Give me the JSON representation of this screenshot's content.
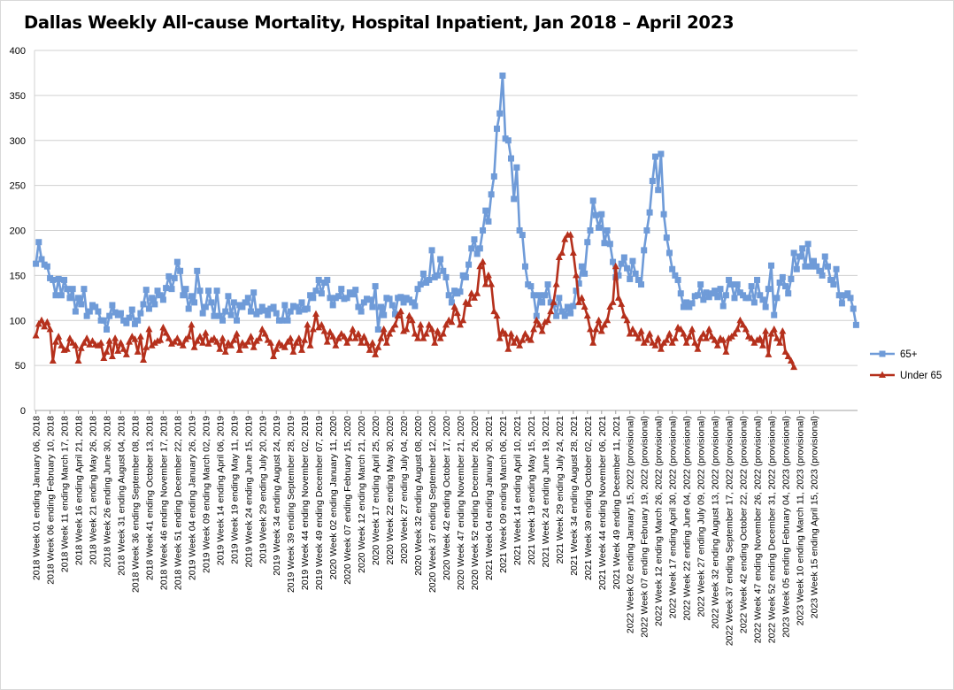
{
  "chart_data": {
    "type": "line",
    "title": "Dallas Weekly All-cause Mortality, Hospital Inpatient, Jan 2018 – April 2023",
    "xlabel": "",
    "ylabel": "",
    "ylim": [
      0,
      400
    ],
    "yticks": [
      0,
      50,
      100,
      150,
      200,
      250,
      300,
      350,
      400
    ],
    "grid": true,
    "legend_position": "right",
    "x_tick_labels": [
      "2018 Week 01 ending January 06, 2018",
      "2018 Week 06 ending February 10, 2018",
      "2018 Week 11 ending March 17, 2018",
      "2018 Week 16 ending April 21, 2018",
      "2018 Week 21 ending May 26, 2018",
      "2018 Week 26 ending June 30, 2018",
      "2018 Week 31 ending August 04, 2018",
      "2018 Week 36 ending September 08, 2018",
      "2018 Week 41 ending October 13, 2018",
      "2018 Week 46 ending November 17, 2018",
      "2018 Week 51 ending December 22, 2018",
      "2019 Week 04 ending January 26, 2019",
      "2019 Week 09 ending March 02, 2019",
      "2019 Week 14 ending April 06, 2019",
      "2019 Week 19 ending May 11, 2019",
      "2019 Week 24 ending June 15, 2019",
      "2019 Week 29 ending July 20, 2019",
      "2019 Week 34 ending August 24, 2019",
      "2019 Week 39 ending September 28, 2019",
      "2019 Week 44 ending November 02, 2019",
      "2019 Week 49 ending December 07, 2019",
      "2020 Week 02 ending January 11, 2020",
      "2020 Week 07 ending February 15, 2020",
      "2020 Week 12 ending March 21, 2020",
      "2020 Week 17 ending April 25, 2020",
      "2020 Week 22 ending May 30, 2020",
      "2020 Week 27 ending July 04, 2020",
      "2020 Week 32 ending August 08, 2020",
      "2020 Week 37 ending September 12, 2020",
      "2020 Week 42 ending October 17, 2020",
      "2020 Week 47 ending November 21, 2020",
      "2020 Week 52 ending December 26, 2020",
      "2021 Week 04 ending January 30, 2021",
      "2021 Week 09 ending March 06, 2021",
      "2021 Week 14 ending April 10, 2021",
      "2021 Week 19 ending May 15, 2021",
      "2021 Week 24 ending June 19, 2021",
      "2021 Week 29 ending July 24, 2021",
      "2021 Week 34 ending August 28, 2021",
      "2021 Week 39 ending October 02, 2021",
      "2021 Week 44 ending November 06, 2021",
      "2021 Week 49 ending December 11, 2021",
      "2022 Week 02 ending January 15, 2022 (provisional)",
      "2022 Week 07 ending February 19, 2022 (provisional)",
      "2022 Week 12 ending March 26, 2022 (provisional)",
      "2022 Week 17 ending April 30, 2022 (provisional)",
      "2022 Week 22 ending June 04, 2022 (provisional)",
      "2022 Week 27 ending July 09, 2022 (provisional)",
      "2022 Week 32 ending August 13, 2022 (provisional)",
      "2022 Week 37 ending September 17, 2022 (provisional)",
      "2022 Week 42 ending October 22, 2022 (provisional)",
      "2022 Week 47 ending November 26, 2022 (provisional)",
      "2022 Week 52 ending December 31, 2022 (provisional)",
      "2023 Week 05 ending February 04, 2023 (provisional)",
      "2023 Week 10 ending March 11, 2023 (provisional)",
      "2023 Week 15 ending April 15, 2023 (provisional)"
    ],
    "series": [
      {
        "name": "65+",
        "color": "#6f9bd8",
        "marker": "square",
        "values": [
          163,
          187,
          168,
          162,
          160,
          147,
          145,
          128,
          146,
          128,
          145,
          135,
          125,
          135,
          110,
          125,
          118,
          135,
          105,
          110,
          117,
          115,
          110,
          100,
          100,
          90,
          105,
          117,
          109,
          106,
          108,
          100,
          97,
          103,
          112,
          96,
          100,
          108,
          118,
          134,
          113,
          125,
          118,
          133,
          128,
          123,
          136,
          149,
          135,
          147,
          165,
          155,
          128,
          135,
          113,
          127,
          120,
          155,
          133,
          108,
          115,
          133,
          120,
          105,
          133,
          105,
          100,
          110,
          127,
          106,
          120,
          100,
          117,
          115,
          120,
          125,
          110,
          131,
          107,
          110,
          115,
          111,
          106,
          113,
          115,
          108,
          100,
          100,
          117,
          100,
          110,
          116,
          115,
          110,
          120,
          112,
          113,
          128,
          125,
          133,
          145,
          130,
          142,
          145,
          125,
          117,
          125,
          127,
          135,
          124,
          125,
          131,
          129,
          134,
          115,
          110,
          120,
          124,
          123,
          115,
          138,
          90,
          115,
          106,
          125,
          124,
          117,
          107,
          125,
          126,
          120,
          125,
          123,
          120,
          116,
          135,
          140,
          152,
          142,
          145,
          178,
          148,
          150,
          168,
          155,
          148,
          128,
          120,
          133,
          130,
          132,
          150,
          148,
          162,
          180,
          190,
          174,
          180,
          200,
          222,
          210,
          240,
          260,
          313,
          330,
          372,
          302,
          300,
          280,
          235,
          270,
          200,
          195,
          160,
          140,
          138,
          128,
          105,
          128,
          120,
          128,
          140,
          120,
          118,
          105,
          125,
          110,
          105,
          115,
          108,
          116,
          133,
          141,
          160,
          152,
          187,
          200,
          233,
          217,
          203,
          218,
          186,
          200,
          185,
          165,
          148,
          150,
          163,
          170,
          158,
          146,
          166,
          152,
          145,
          140,
          178,
          200,
          220,
          255,
          282,
          245,
          285,
          218,
          192,
          175,
          157,
          150,
          145,
          130,
          115,
          120,
          115,
          119,
          127,
          128,
          140,
          123,
          131,
          126,
          130,
          133,
          126,
          135,
          116,
          128,
          145,
          140,
          125,
          140,
          131,
          128,
          125,
          125,
          138,
          120,
          145,
          128,
          123,
          115,
          135,
          161,
          106,
          125,
          142,
          148,
          138,
          130,
          146,
          175,
          157,
          171,
          180,
          160,
          185,
          160,
          166,
          160,
          155,
          150,
          171,
          160,
          145,
          140,
          157,
          128,
          119,
          128,
          130,
          125,
          113,
          95
        ]
      },
      {
        "name": "Under 65",
        "color": "#b5301c",
        "marker": "triangle",
        "values": [
          83,
          96,
          100,
          93,
          98,
          90,
          55,
          76,
          82,
          72,
          67,
          68,
          80,
          75,
          72,
          55,
          69,
          75,
          80,
          73,
          77,
          73,
          72,
          75,
          58,
          65,
          77,
          60,
          80,
          66,
          75,
          68,
          62,
          76,
          82,
          79,
          65,
          82,
          56,
          70,
          90,
          72,
          75,
          77,
          78,
          92,
          86,
          80,
          74,
          76,
          80,
          75,
          72,
          79,
          82,
          95,
          70,
          77,
          82,
          75,
          86,
          74,
          78,
          80,
          76,
          68,
          80,
          65,
          75,
          72,
          78,
          85,
          67,
          75,
          72,
          76,
          82,
          70,
          77,
          80,
          90,
          85,
          78,
          75,
          60,
          68,
          75,
          72,
          70,
          76,
          80,
          65,
          75,
          80,
          67,
          78,
          95,
          72,
          90,
          107,
          92,
          95,
          88,
          76,
          87,
          82,
          72,
          80,
          85,
          82,
          75,
          80,
          90,
          80,
          85,
          75,
          82,
          75,
          67,
          75,
          62,
          70,
          80,
          90,
          75,
          85,
          90,
          95,
          105,
          110,
          88,
          90,
          105,
          100,
          85,
          80,
          95,
          80,
          85,
          95,
          90,
          75,
          88,
          80,
          85,
          95,
          100,
          98,
          115,
          108,
          95,
          100,
          120,
          118,
          130,
          125,
          130,
          160,
          165,
          140,
          150,
          140,
          110,
          105,
          80,
          88,
          85,
          68,
          85,
          75,
          80,
          72,
          78,
          85,
          80,
          78,
          90,
          100,
          95,
          88,
          98,
          100,
          110,
          120,
          140,
          170,
          175,
          190,
          195,
          195,
          175,
          150,
          120,
          125,
          115,
          105,
          90,
          75,
          90,
          100,
          88,
          95,
          100,
          115,
          120,
          160,
          125,
          118,
          105,
          100,
          85,
          90,
          85,
          80,
          88,
          75,
          78,
          85,
          75,
          72,
          80,
          68,
          75,
          78,
          85,
          75,
          80,
          92,
          90,
          85,
          75,
          82,
          90,
          75,
          68,
          80,
          85,
          80,
          90,
          82,
          78,
          72,
          80,
          78,
          65,
          80,
          82,
          85,
          90,
          100,
          95,
          90,
          82,
          80,
          75,
          78,
          80,
          72,
          88,
          62,
          85,
          90,
          80,
          75,
          88,
          65,
          60,
          55,
          48
        ]
      }
    ]
  }
}
